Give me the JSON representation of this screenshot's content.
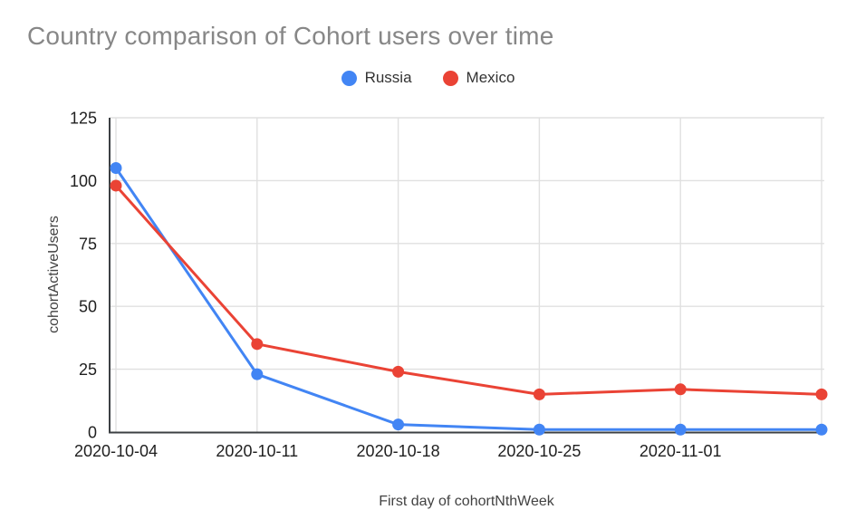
{
  "page": {
    "background": "#ffffff"
  },
  "header": {
    "title": "Country comparison of Cohort users over time",
    "title_color": "#878787"
  },
  "legend": {
    "position": "top-center",
    "items": [
      {
        "label": "Russia",
        "color": "#4285F4"
      },
      {
        "label": "Mexico",
        "color": "#EA4335"
      }
    ]
  },
  "chart_data": {
    "type": "line",
    "title": "Country comparison of Cohort users over time",
    "xlabel": "First day of cohortNthWeek",
    "ylabel": "cohortActiveUsers",
    "x_tick_labels": [
      "2020-10-04",
      "2020-10-11",
      "2020-10-18",
      "2020-10-25",
      "2020-11-01",
      ""
    ],
    "y_ticks": [
      0,
      25,
      50,
      75,
      100,
      125
    ],
    "ylim": [
      0,
      125
    ],
    "grid": true,
    "legend_position": "top-center",
    "series": [
      {
        "name": "Russia",
        "color": "#4285F4",
        "values": [
          105,
          23,
          3,
          1,
          1,
          1
        ]
      },
      {
        "name": "Mexico",
        "color": "#EA4335",
        "values": [
          98,
          35,
          24,
          15,
          17,
          15
        ]
      }
    ],
    "style": {
      "gridline_color": "#e0e0e0",
      "axis_line_color": "#3c4043",
      "tick_label_color": "#1f1f1f"
    }
  }
}
